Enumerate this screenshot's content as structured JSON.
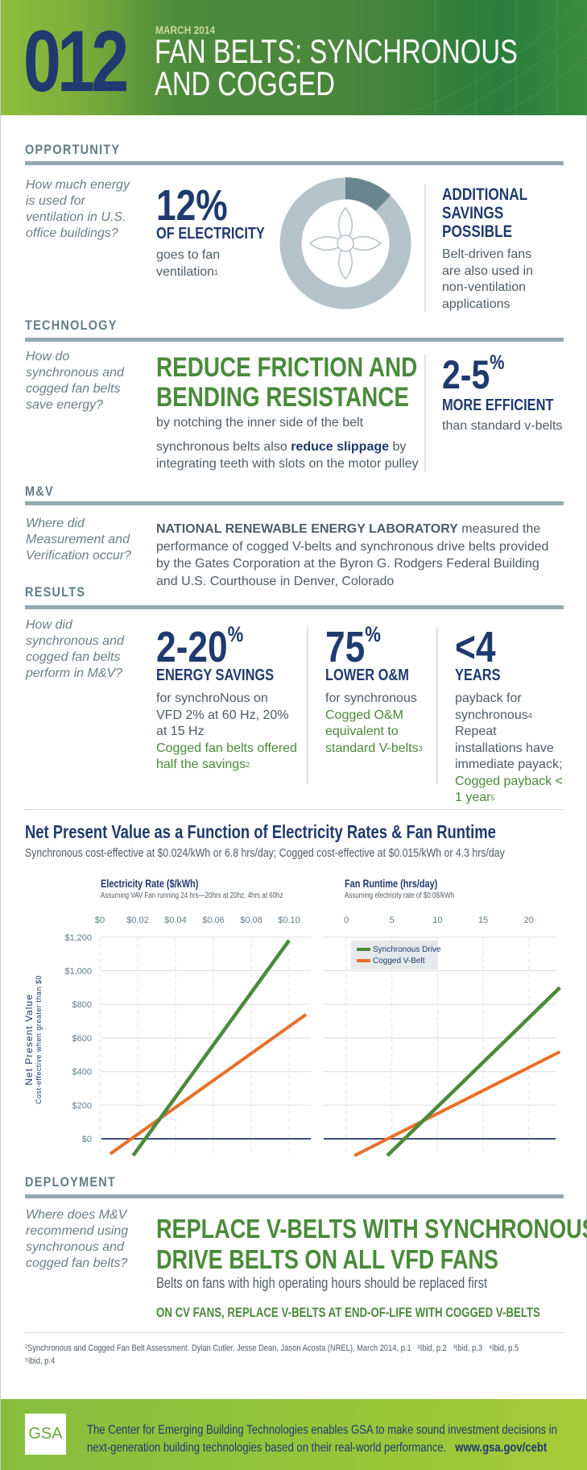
{
  "header": {
    "number": "012",
    "date": "MARCH 2014",
    "title_line1": "FAN BELTS: SYNCHRONOUS",
    "title_line2": "AND COGGED"
  },
  "opportunity": {
    "label": "OPPORTUNITY",
    "question": "How much energy is used for ventilation in U.S. office buildings?",
    "stat": "12%",
    "stat_head": "OF ELECTRICITY",
    "stat_text": "goes to fan ventilation",
    "stat_note": "1",
    "donut_fraction": 0.12,
    "side_head": [
      "ADDITIONAL",
      "SAVINGS",
      "POSSIBLE"
    ],
    "side_text": "Belt-driven fans are also used in non-ventilation applications"
  },
  "technology": {
    "label": "TECHNOLOGY",
    "question": "How do synchronous and cogged fan belts save energy?",
    "headline": [
      "REDUCE FRICTION AND",
      "BENDING RESISTANCE"
    ],
    "line1": "by notching the inner side of the belt",
    "line2_a": "synchronous belts also ",
    "line2_b": "reduce slippage",
    "line2_c": " by integrating teeth with slots on the motor pulley",
    "stat": "2-5",
    "stat_unit": "%",
    "stat_head": "MORE EFFICIENT",
    "stat_text": "than standard v-belts"
  },
  "mv": {
    "label": "M&V",
    "question": "Where did Measurement and Verification occur?",
    "bold": "NATIONAL RENEWABLE ENERGY LABORATORY",
    "text": " measured the performance of cogged V-belts and synchronous drive belts provided by the Gates Corporation at the Byron G. Rodgers Federal Building and U.S. Courthouse in Denver, Colorado"
  },
  "results": {
    "label": "RESULTS",
    "question": "How did synchronous and cogged fan belts perform in M&V?",
    "cols": [
      {
        "stat": "2-20",
        "unit": "%",
        "head": "ENERGY SAVINGS",
        "text": "for synchroNous on VFD 2% at 60 Hz, 20% at 15 Hz",
        "green": "Cogged fan belts offered half the savings",
        "note": "2"
      },
      {
        "stat": "75",
        "unit": "%",
        "head": "LOWER O&M",
        "text": "for synchronous",
        "green": "Cogged O&M equivalent to standard V-belts",
        "note": "3"
      },
      {
        "stat": "<4",
        "unit": "",
        "head": "YEARS",
        "text": "payback for synchronous",
        "note_a": "4",
        "text2": "Repeat installations have immediate payack;",
        "green": "Cogged payback < 1 year",
        "note": "5"
      }
    ]
  },
  "chart_data": [
    {
      "type": "line",
      "title": "Net Present Value as a Function of Electricity Rates & Fan Runtime",
      "subtitle": "Synchronous cost-effective at $0.024/kWh or 6.8 hrs/day; Cogged cost-effective at $0.015/kWh or 4.3 hrs/day",
      "panel_title": "Electricity Rate ($/kWh)",
      "panel_subtitle": "Assuming VAV Fan running 24 hrs—20hrs at 20hz, 4hrs at 60hz",
      "ylabel": "Net Present Value",
      "ylabel_sub": "Cost-effective when greater than $0",
      "x_ticks": [
        "$0",
        "$0.02",
        "$0.04",
        "$0.06",
        "$0.08",
        "$0.10"
      ],
      "x_tick_values": [
        0,
        0.02,
        0.04,
        0.06,
        0.08,
        0.1
      ],
      "y_ticks": [
        "$0",
        "$200",
        "$400",
        "$600",
        "$800",
        "$1,000",
        "$1,200"
      ],
      "y_tick_values": [
        0,
        200,
        400,
        600,
        800,
        1000,
        1200
      ],
      "xlim": [
        0,
        0.11
      ],
      "ylim": [
        -100,
        1200
      ],
      "grid": true,
      "series": [
        {
          "name": "Synchronous Drive",
          "color": "#4a8a3a",
          "x": [
            0.0176,
            0.1
          ],
          "y": [
            -100,
            1180
          ]
        },
        {
          "name": "Cogged V-Belt",
          "color": "#e8702a",
          "x": [
            0.0055,
            0.109
          ],
          "y": [
            -90,
            740
          ]
        }
      ]
    },
    {
      "type": "line",
      "panel_title": "Fan Runtime (hrs/day)",
      "panel_subtitle": "Assuming electricity rate of $0.08/kWh",
      "x_ticks": [
        "0",
        "5",
        "10",
        "15",
        "20"
      ],
      "x_tick_values": [
        0,
        5,
        10,
        15,
        20
      ],
      "xlim": [
        -1.2,
        23.5
      ],
      "ylim": [
        -100,
        1200
      ],
      "grid": true,
      "legend": "top-left",
      "series": [
        {
          "name": "Synchronous Drive",
          "color": "#4a8a3a",
          "x": [
            4.5,
            23.4
          ],
          "y": [
            -100,
            900
          ]
        },
        {
          "name": "Cogged V-Belt",
          "color": "#e8702a",
          "x": [
            0.9,
            23.4
          ],
          "y": [
            -100,
            518
          ]
        }
      ]
    }
  ],
  "deployment": {
    "label": "DEPLOYMENT",
    "question": "Where does M&V recommend using synchronous and cogged fan belts?",
    "headline": [
      "REPLACE V-BELTS WITH SYNCHRONOUS",
      "DRIVE BELTS ON ALL VFD FANS"
    ],
    "text": "Belts on fans with high operating hours should be replaced first",
    "green": "ON CV FANS, REPLACE V-BELTS AT END-OF-LIFE WITH COGGED V-BELTS"
  },
  "footnotes": {
    "line1": "¹Synchronous and Cogged Fan Belt Assessment. Dylan Cutler, Jesse Dean, Jason Acosta (NREL), March 2014, p.1   ²Ibid, p.2   ³Ibid, p.3   ⁴Ibid, p.5",
    "line2": "⁵Ibid, p.4"
  },
  "footer": {
    "logo": "GSA",
    "text": "The Center for Emerging Building Technologies enables GSA to make sound investment decisions in next-generation building technologies based on their real-world performance.",
    "url": "www.gsa.gov/cebt"
  }
}
